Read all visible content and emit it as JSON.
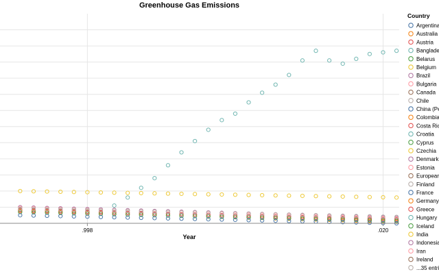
{
  "chart_data": {
    "type": "scatter",
    "title": "Greenhouse Gas Emissions",
    "xlabel": "Year",
    "ylabel": "",
    "xlim": [
      1991.5,
      2021.2
    ],
    "ylim": [
      0,
      13
    ],
    "x_ticks": [
      {
        "value": 1998,
        "label": ".998"
      },
      {
        "value": 2020,
        "label": ".020"
      }
    ],
    "y_gridlines": [
      1,
      2,
      3,
      4,
      5,
      6,
      7,
      8,
      9,
      10,
      11,
      12
    ],
    "grid": true,
    "legend": {
      "title": "Country",
      "position": "right",
      "entries": [
        {
          "label": "Argentina",
          "color": "#4c78a8"
        },
        {
          "label": "Australia",
          "color": "#f58518"
        },
        {
          "label": "Austria",
          "color": "#e45756"
        },
        {
          "label": "Banglade",
          "color": "#72b7b2"
        },
        {
          "label": "Belarus",
          "color": "#54a24b"
        },
        {
          "label": "Belgium",
          "color": "#eeca3b"
        },
        {
          "label": "Brazil",
          "color": "#b279a2"
        },
        {
          "label": "Bulgaria",
          "color": "#ff9da6"
        },
        {
          "label": "Canada",
          "color": "#9d755d"
        },
        {
          "label": "Chile",
          "color": "#bab0ac"
        },
        {
          "label": "China (Pe",
          "color": "#4c78a8"
        },
        {
          "label": "Colombia",
          "color": "#f58518"
        },
        {
          "label": "Costa Ric",
          "color": "#e45756"
        },
        {
          "label": "Croatia",
          "color": "#72b7b2"
        },
        {
          "label": "Cyprus",
          "color": "#54a24b"
        },
        {
          "label": "Czechia",
          "color": "#eeca3b"
        },
        {
          "label": "Denmark",
          "color": "#b279a2"
        },
        {
          "label": "Estonia",
          "color": "#ff9da6"
        },
        {
          "label": "European",
          "color": "#9d755d"
        },
        {
          "label": "Finland",
          "color": "#bab0ac"
        },
        {
          "label": "France",
          "color": "#4c78a8"
        },
        {
          "label": "Germany",
          "color": "#f58518"
        },
        {
          "label": "Greece",
          "color": "#e45756"
        },
        {
          "label": "Hungary",
          "color": "#72b7b2"
        },
        {
          "label": "Iceland",
          "color": "#54a24b"
        },
        {
          "label": "India",
          "color": "#eeca3b"
        },
        {
          "label": "Indonesia",
          "color": "#b279a2"
        },
        {
          "label": "Iran",
          "color": "#ff9da6"
        },
        {
          "label": "Ireland",
          "color": "#9d755d"
        },
        {
          "label": "...35 entri",
          "color": "#bab0ac"
        }
      ]
    },
    "years": [
      1993,
      1994,
      1995,
      1996,
      1997,
      1998,
      1999,
      2000,
      2001,
      2002,
      2003,
      2004,
      2005,
      2006,
      2007,
      2008,
      2009,
      2010,
      2011,
      2012,
      2013,
      2014,
      2015,
      2016,
      2017,
      2018,
      2019,
      2020,
      2021
    ],
    "highlight_series": {
      "name": "",
      "color": "#72b7b2",
      "points": [
        [
          2000,
          1.1
        ],
        [
          2001,
          1.6
        ],
        [
          2002,
          2.2
        ],
        [
          2003,
          2.8
        ],
        [
          2004,
          3.6
        ],
        [
          2005,
          4.4
        ],
        [
          2006,
          5.1
        ],
        [
          2007,
          5.8
        ],
        [
          2008,
          6.4
        ],
        [
          2009,
          6.8
        ],
        [
          2010,
          7.5
        ],
        [
          2011,
          8.1
        ],
        [
          2012,
          8.6
        ],
        [
          2013,
          9.2
        ],
        [
          2014,
          10.1
        ],
        [
          2015,
          10.7
        ],
        [
          2016,
          10.1
        ],
        [
          2017,
          9.9
        ],
        [
          2018,
          10.2
        ],
        [
          2019,
          10.5
        ],
        [
          2020,
          10.6
        ],
        [
          2021,
          10.7
        ]
      ]
    },
    "bands": [
      {
        "color": "#eeca3b",
        "values": [
          2.0,
          1.6
        ]
      },
      {
        "color": "#b279a2",
        "values": [
          1.0,
          0.35
        ]
      },
      {
        "color": "#ff9da6",
        "values": [
          0.95,
          0.3
        ]
      },
      {
        "color": "#9d755d",
        "values": [
          0.85,
          0.2
        ]
      },
      {
        "color": "#e45756",
        "values": [
          0.8,
          0.25
        ]
      },
      {
        "color": "#f58518",
        "values": [
          0.75,
          0.1
        ]
      },
      {
        "color": "#54a24b",
        "values": [
          0.7,
          0.15
        ]
      },
      {
        "color": "#4c78a8",
        "values": [
          0.5,
          0.0
        ]
      },
      {
        "color": "#bab0ac",
        "values": [
          0.9,
          0.4
        ]
      }
    ]
  }
}
